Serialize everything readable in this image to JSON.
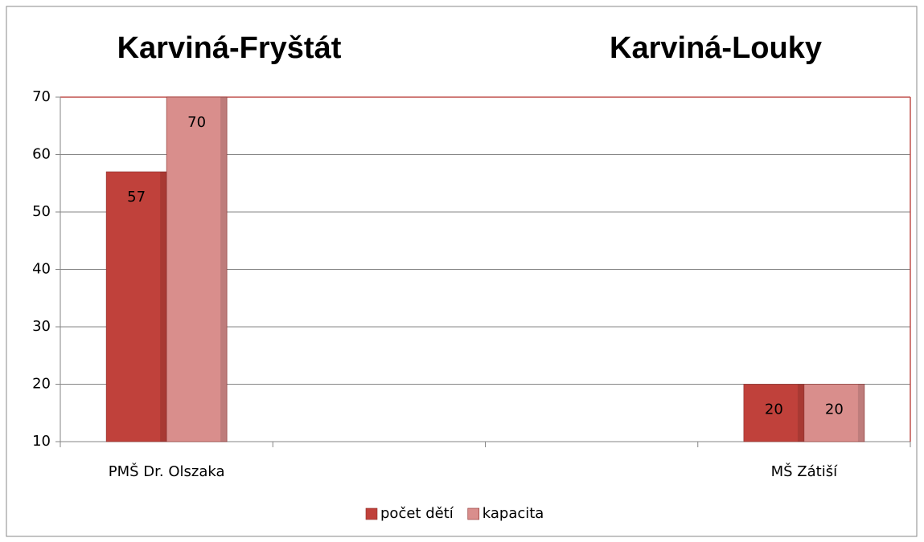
{
  "chart_data": {
    "type": "bar",
    "titles": [
      "Karviná-Fryštát",
      "Karviná-Louky"
    ],
    "categories": [
      "PMŠ Dr. Olszaka",
      null,
      null,
      "MŠ Zátiší"
    ],
    "series": [
      {
        "name": "počet dětí",
        "color": "#c0413b",
        "values": [
          57,
          null,
          null,
          20
        ]
      },
      {
        "name": "kapacita",
        "color": "#d98e8c",
        "values": [
          70,
          null,
          null,
          20
        ]
      }
    ],
    "ylim": [
      10,
      70
    ],
    "yticks": [
      10,
      20,
      30,
      40,
      50,
      60,
      70
    ],
    "grid": true,
    "legend": "bottom"
  }
}
